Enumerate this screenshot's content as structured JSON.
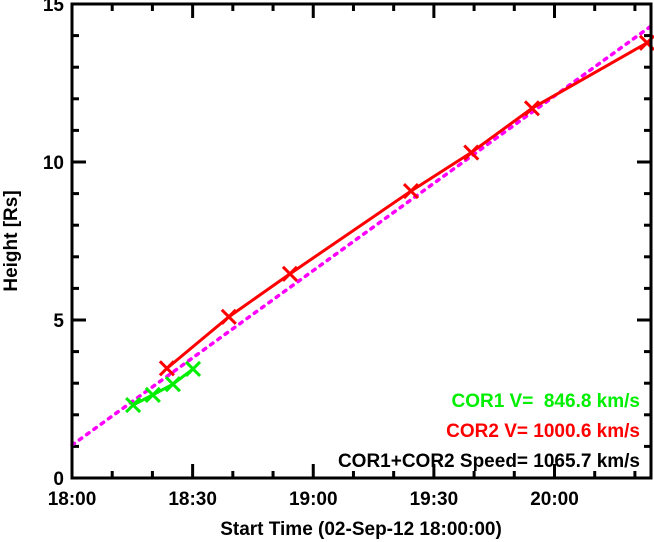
{
  "chart_data": {
    "type": "line",
    "title": "",
    "xlabel": "Start Time (02-Sep-12 18:00:00)",
    "ylabel": "Height [Rs]",
    "x_units": "minutes since 18:00",
    "xlim": [
      0,
      144
    ],
    "ylim": [
      0,
      15
    ],
    "x_ticks": [
      {
        "v": 0,
        "label": "18:00"
      },
      {
        "v": 30,
        "label": "18:30"
      },
      {
        "v": 60,
        "label": "19:00"
      },
      {
        "v": 90,
        "label": "19:30"
      },
      {
        "v": 120,
        "label": "20:00"
      }
    ],
    "y_ticks": [
      {
        "v": 0,
        "label": "0"
      },
      {
        "v": 5,
        "label": "5"
      },
      {
        "v": 10,
        "label": "10"
      },
      {
        "v": 15,
        "label": "15"
      }
    ],
    "grid": false,
    "series": [
      {
        "name": "COR1",
        "color": "#00ee00",
        "marker": "x",
        "line": "solid",
        "x": [
          15.2,
          20.1,
          25.1,
          30.1
        ],
        "y": [
          2.31,
          2.63,
          2.97,
          3.45
        ]
      },
      {
        "name": "COR2",
        "color": "#ff0000",
        "marker": "x",
        "line": "solid",
        "x": [
          23.6,
          39.0,
          54.2,
          84.3,
          99.3,
          114.4,
          143.0
        ],
        "y": [
          3.47,
          5.1,
          6.46,
          9.08,
          10.3,
          11.7,
          13.77
        ]
      },
      {
        "name": "COR1+COR2 fit",
        "color": "#ff00ff",
        "marker": "none",
        "line": "dotted",
        "x": [
          0,
          144
        ],
        "y": [
          1.04,
          14.3
        ]
      }
    ],
    "legend": {
      "placement": "bottom-right",
      "entries": [
        {
          "text": "COR1 V=  846.8 km/s",
          "color": "#00ee00"
        },
        {
          "text": "COR2 V= 1000.6 km/s",
          "color": "#ff0000"
        },
        {
          "text": "COR1+COR2 Speed= 1065.7 km/s",
          "color": "#000000"
        }
      ]
    }
  }
}
